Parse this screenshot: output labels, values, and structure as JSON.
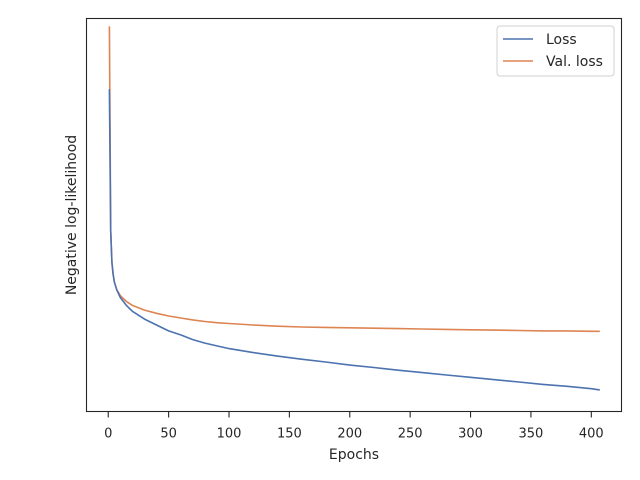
{
  "chart_data": {
    "type": "line",
    "title": "",
    "xlabel": "Epochs",
    "ylabel": "Negative log-likelihood",
    "xlim": [
      -18,
      425
    ],
    "ylim": [
      0,
      1
    ],
    "y_ticks_visible": false,
    "x_ticks": [
      0,
      50,
      100,
      150,
      200,
      250,
      300,
      350,
      400
    ],
    "grid": false,
    "legend": {
      "position": "top-right"
    },
    "series": [
      {
        "name": "Loss",
        "color": "#4c72b0",
        "x": [
          1,
          2,
          3,
          4,
          5,
          7,
          10,
          15,
          20,
          30,
          40,
          50,
          60,
          70,
          80,
          90,
          100,
          120,
          140,
          160,
          180,
          200,
          220,
          240,
          260,
          280,
          300,
          320,
          340,
          360,
          380,
          400,
          407
        ],
        "y": [
          0.82,
          0.46,
          0.38,
          0.35,
          0.33,
          0.31,
          0.29,
          0.27,
          0.255,
          0.235,
          0.22,
          0.205,
          0.195,
          0.183,
          0.174,
          0.167,
          0.16,
          0.15,
          0.141,
          0.133,
          0.126,
          0.118,
          0.112,
          0.105,
          0.099,
          0.093,
          0.087,
          0.081,
          0.075,
          0.069,
          0.064,
          0.058,
          0.055
        ]
      },
      {
        "name": "Val. loss",
        "color": "#dd8452",
        "x": [
          1,
          2,
          3,
          4,
          5,
          7,
          10,
          15,
          20,
          30,
          40,
          50,
          60,
          70,
          80,
          90,
          100,
          120,
          140,
          160,
          180,
          200,
          220,
          240,
          260,
          280,
          300,
          320,
          340,
          360,
          380,
          400,
          407
        ],
        "y": [
          0.98,
          0.46,
          0.38,
          0.35,
          0.33,
          0.31,
          0.295,
          0.28,
          0.27,
          0.258,
          0.25,
          0.243,
          0.238,
          0.233,
          0.229,
          0.226,
          0.224,
          0.22,
          0.217,
          0.215,
          0.214,
          0.213,
          0.212,
          0.211,
          0.21,
          0.209,
          0.208,
          0.207,
          0.206,
          0.205,
          0.205,
          0.204,
          0.204
        ]
      }
    ]
  }
}
